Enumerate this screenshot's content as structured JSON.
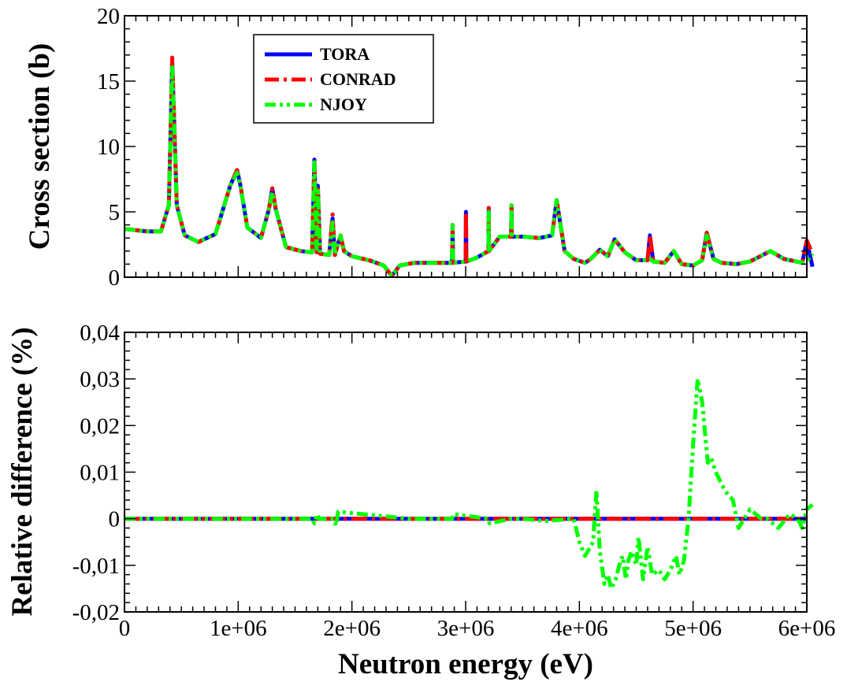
{
  "chart_data": [
    {
      "type": "line",
      "xlim": [
        0,
        6000000
      ],
      "ylim": [
        0,
        20
      ],
      "ylabel": "Cross section (b)",
      "x_ticks": [
        0,
        1000000,
        2000000,
        3000000,
        4000000,
        5000000,
        6000000
      ],
      "y_ticks": [
        0,
        5,
        10,
        15,
        20
      ],
      "y_tick_labels": [
        "0",
        "5",
        "10",
        "15",
        "20"
      ],
      "legend": {
        "position": "top-left",
        "entries": [
          "TORA",
          "CONRAD",
          "NJOY"
        ]
      },
      "series": [
        {
          "name": "TORA",
          "color": "#0000ff",
          "style": "solid",
          "x": [
            0,
            200000,
            320000,
            390000,
            420000,
            460000,
            530000,
            650000,
            800000,
            930000,
            990000,
            1020000,
            1080000,
            1200000,
            1270000,
            1300000,
            1330000,
            1420000,
            1550000,
            1650000,
            1670000,
            1690000,
            1700000,
            1720000,
            1800000,
            1830000,
            1850000,
            1880000,
            1900000,
            1930000,
            2000000,
            2150000,
            2280000,
            2350000,
            2420000,
            2550000,
            2700000,
            2880000,
            2885000,
            2890000,
            3000000,
            3003000,
            3006000,
            3100000,
            3200000,
            3203000,
            3206000,
            3300000,
            3400000,
            3403000,
            3406000,
            3500000,
            3650000,
            3760000,
            3800000,
            3870000,
            3950000,
            4050000,
            4100000,
            4180000,
            4250000,
            4310000,
            4400000,
            4500000,
            4600000,
            4620000,
            4650000,
            4750000,
            4830000,
            4900000,
            5000000,
            5080000,
            5120000,
            5180000,
            5250000,
            5380000,
            5500000,
            5680000,
            5800000,
            5960000,
            6000000,
            6050000
          ],
          "y": [
            3.7,
            3.5,
            3.5,
            5.5,
            16.5,
            5.5,
            3.2,
            2.7,
            3.3,
            7.0,
            8.2,
            7.0,
            3.8,
            3.0,
            5.2,
            6.8,
            5.2,
            2.3,
            2.0,
            1.9,
            9.0,
            1.9,
            7.0,
            1.8,
            1.7,
            4.5,
            1.7,
            2.6,
            3.2,
            2.0,
            1.6,
            1.3,
            0.9,
            0.1,
            0.9,
            1.1,
            1.1,
            1.1,
            4.0,
            1.1,
            1.2,
            5.0,
            1.2,
            1.5,
            2.0,
            5.3,
            2.0,
            3.1,
            3.1,
            5.5,
            3.1,
            3.1,
            3.0,
            3.2,
            5.9,
            2.0,
            1.4,
            1.1,
            1.4,
            2.1,
            1.6,
            2.9,
            1.9,
            1.3,
            1.3,
            3.2,
            1.2,
            1.1,
            2.0,
            1.0,
            0.9,
            1.3,
            3.4,
            1.4,
            1.1,
            1.0,
            1.2,
            2.0,
            1.4,
            1.1,
            2.8,
            0.8
          ],
          "values": [
            3.7,
            3.5,
            3.5,
            5.5,
            16.5,
            5.5,
            3.2,
            2.7,
            3.3,
            7.0,
            8.2,
            7.0,
            3.8,
            3.0,
            5.2,
            6.8,
            5.2,
            2.3,
            2.0,
            1.9,
            9.0,
            1.9,
            7.0,
            1.8,
            1.7,
            4.5,
            1.7,
            2.6,
            3.2,
            2.0,
            1.6,
            1.3,
            0.9,
            0.1,
            0.9,
            1.1,
            1.1,
            1.1,
            4.0,
            1.1,
            1.2,
            5.0,
            1.2,
            1.5,
            2.0,
            5.3,
            2.0,
            3.1,
            3.1,
            5.5,
            3.1,
            3.1,
            3.0,
            3.2,
            5.9,
            2.0,
            1.4,
            1.1,
            1.4,
            2.1,
            1.6,
            2.9,
            1.9,
            1.3,
            1.3,
            3.2,
            1.2,
            1.1,
            2.0,
            1.0,
            0.9,
            1.3,
            3.4,
            1.4,
            1.1,
            1.0,
            1.2,
            2.0,
            1.4,
            1.1,
            2.8,
            0.8
          ]
        },
        {
          "name": "CONRAD",
          "color": "#ff0000",
          "style": "dash-dot",
          "x": [
            0,
            200000,
            320000,
            390000,
            420000,
            460000,
            530000,
            650000,
            800000,
            930000,
            990000,
            1020000,
            1080000,
            1200000,
            1270000,
            1300000,
            1330000,
            1420000,
            1550000,
            1650000,
            1670000,
            1690000,
            1700000,
            1720000,
            1800000,
            1830000,
            1850000,
            1880000,
            1900000,
            1930000,
            2000000,
            2150000,
            2280000,
            2350000,
            2420000,
            2550000,
            2700000,
            2880000,
            2885000,
            2890000,
            3000000,
            3003000,
            3006000,
            3100000,
            3200000,
            3203000,
            3206000,
            3300000,
            3400000,
            3403000,
            3406000,
            3500000,
            3650000,
            3760000,
            3800000,
            3870000,
            3950000,
            4050000,
            4100000,
            4180000,
            4250000,
            4310000,
            4400000,
            4500000,
            4600000,
            4620000,
            4650000,
            4750000,
            4830000,
            4900000,
            5000000,
            5080000,
            5120000,
            5180000,
            5250000,
            5380000,
            5500000,
            5680000,
            5800000,
            5960000,
            6000000,
            6050000
          ],
          "y": [
            3.7,
            3.5,
            3.5,
            5.5,
            16.8,
            5.5,
            3.2,
            2.7,
            3.3,
            7.0,
            8.2,
            7.0,
            3.8,
            3.0,
            5.2,
            6.8,
            5.2,
            2.3,
            2.0,
            1.9,
            8.8,
            1.9,
            7.0,
            1.8,
            1.7,
            4.8,
            1.7,
            2.6,
            3.2,
            2.0,
            1.6,
            1.3,
            0.9,
            0.1,
            0.9,
            1.1,
            1.1,
            1.1,
            4.0,
            1.1,
            1.2,
            5.0,
            1.2,
            1.5,
            2.0,
            5.3,
            2.0,
            3.1,
            3.1,
            5.5,
            3.1,
            3.1,
            3.0,
            3.2,
            5.9,
            2.0,
            1.4,
            1.1,
            1.4,
            2.1,
            1.6,
            2.9,
            1.9,
            1.3,
            1.3,
            3.2,
            1.2,
            1.1,
            2.0,
            1.0,
            0.9,
            1.3,
            3.4,
            1.4,
            1.1,
            1.0,
            1.2,
            2.0,
            1.4,
            1.1,
            2.8,
            1.8
          ],
          "values": [
            3.7,
            3.5,
            3.5,
            5.5,
            16.8,
            5.5,
            3.2,
            2.7,
            3.3,
            7.0,
            8.2,
            7.0,
            3.8,
            3.0,
            5.2,
            6.8,
            5.2,
            2.3,
            2.0,
            1.9,
            8.8,
            1.9,
            7.0,
            1.8,
            1.7,
            4.8,
            1.7,
            2.6,
            3.2,
            2.0,
            1.6,
            1.3,
            0.9,
            0.1,
            0.9,
            1.1,
            1.1,
            1.1,
            4.0,
            1.1,
            1.2,
            5.0,
            1.2,
            1.5,
            2.0,
            5.3,
            2.0,
            3.1,
            3.1,
            5.5,
            3.1,
            3.1,
            3.0,
            3.2,
            5.9,
            2.0,
            1.4,
            1.1,
            1.4,
            2.1,
            1.6,
            2.9,
            1.9,
            1.3,
            1.3,
            3.2,
            1.2,
            1.1,
            2.0,
            1.0,
            0.9,
            1.3,
            3.4,
            1.4,
            1.1,
            1.0,
            1.2,
            2.0,
            1.4,
            1.1,
            2.8,
            1.8
          ]
        },
        {
          "name": "NJOY",
          "color": "#00ff00",
          "style": "dash-dot-dot",
          "x": [
            0,
            200000,
            320000,
            390000,
            420000,
            460000,
            530000,
            650000,
            800000,
            930000,
            990000,
            1020000,
            1080000,
            1200000,
            1270000,
            1300000,
            1330000,
            1420000,
            1550000,
            1650000,
            1670000,
            1690000,
            1700000,
            1720000,
            1800000,
            1830000,
            1850000,
            1880000,
            1900000,
            1930000,
            2000000,
            2150000,
            2280000,
            2350000,
            2420000,
            2550000,
            2700000,
            2880000,
            2885000,
            2890000,
            3000000,
            3003000,
            3006000,
            3100000,
            3200000,
            3203000,
            3206000,
            3300000,
            3400000,
            3403000,
            3406000,
            3500000,
            3650000,
            3760000,
            3800000,
            3870000,
            3950000,
            4050000,
            4100000,
            4180000,
            4250000,
            4310000,
            4400000,
            4500000,
            4600000,
            4620000,
            4650000,
            4750000,
            4830000,
            4900000,
            5000000,
            5080000,
            5120000,
            5180000,
            5250000,
            5380000,
            5500000,
            5680000,
            5800000,
            5960000,
            6000000,
            6050000
          ],
          "y": [
            3.7,
            3.5,
            3.5,
            5.5,
            16.2,
            5.5,
            3.2,
            2.7,
            3.3,
            7.0,
            8.0,
            7.0,
            3.8,
            3.0,
            5.2,
            6.5,
            5.2,
            2.3,
            2.0,
            1.9,
            8.8,
            1.9,
            6.8,
            1.8,
            1.7,
            4.2,
            1.7,
            2.6,
            3.2,
            2.0,
            1.6,
            1.3,
            0.9,
            0.1,
            0.9,
            1.1,
            1.1,
            1.1,
            4.0,
            1.1,
            1.2,
            1.2,
            1.2,
            1.5,
            2.0,
            5.0,
            2.0,
            3.1,
            3.1,
            5.5,
            3.1,
            3.1,
            3.0,
            3.2,
            5.9,
            2.0,
            1.4,
            1.1,
            1.4,
            2.1,
            1.6,
            2.9,
            1.9,
            1.3,
            1.3,
            1.4,
            1.2,
            1.1,
            2.0,
            1.0,
            0.9,
            1.3,
            3.2,
            1.4,
            1.1,
            1.0,
            1.2,
            2.0,
            1.4,
            1.1,
            1.2,
            1.8
          ],
          "values": [
            3.7,
            3.5,
            3.5,
            5.5,
            16.2,
            5.5,
            3.2,
            2.7,
            3.3,
            7.0,
            8.0,
            7.0,
            3.8,
            3.0,
            5.2,
            6.5,
            5.2,
            2.3,
            2.0,
            1.9,
            8.8,
            1.9,
            6.8,
            1.8,
            1.7,
            4.2,
            1.7,
            2.6,
            3.2,
            2.0,
            1.6,
            1.3,
            0.9,
            0.1,
            0.9,
            1.1,
            1.1,
            1.1,
            4.0,
            1.1,
            1.2,
            1.2,
            1.2,
            1.5,
            2.0,
            5.0,
            2.0,
            3.1,
            3.1,
            5.5,
            3.1,
            3.1,
            3.0,
            3.2,
            5.9,
            2.0,
            1.4,
            1.1,
            1.4,
            2.1,
            1.6,
            2.9,
            1.9,
            1.3,
            1.3,
            1.4,
            1.2,
            1.1,
            2.0,
            1.0,
            0.9,
            1.3,
            3.2,
            1.4,
            1.1,
            1.0,
            1.2,
            2.0,
            1.4,
            1.1,
            1.2,
            1.8
          ]
        }
      ]
    },
    {
      "type": "line",
      "xlim": [
        0,
        6000000
      ],
      "ylim": [
        -0.02,
        0.04
      ],
      "ylabel": "Relative difference (%)",
      "xlabel": "Neutron energy (eV)",
      "x_ticks": [
        0,
        1000000,
        2000000,
        3000000,
        4000000,
        5000000,
        6000000
      ],
      "x_tick_labels": [
        "0",
        "1e+06",
        "2e+06",
        "3e+06",
        "4e+06",
        "5e+06",
        "6e+06"
      ],
      "y_ticks": [
        -0.02,
        -0.01,
        0,
        0.01,
        0.02,
        0.03,
        0.04
      ],
      "y_tick_labels": [
        "-0,02",
        "-0,01",
        "0",
        "0,01",
        "0,02",
        "0,03",
        "0,04"
      ],
      "series": [
        {
          "name": "TORA",
          "color": "#0000ff",
          "style": "solid",
          "x": [
            0,
            6000000
          ],
          "y": [
            0,
            0
          ],
          "values": [
            0,
            0
          ]
        },
        {
          "name": "CONRAD",
          "color": "#ff0000",
          "style": "dash-dot",
          "x": [
            0,
            6000000
          ],
          "y": [
            0,
            0
          ],
          "values": [
            0,
            0
          ]
        },
        {
          "name": "NJOY",
          "color": "#00ff00",
          "style": "dash-dot-dot",
          "x": [
            0,
            1650000,
            1670000,
            1690000,
            1710000,
            1840000,
            1860000,
            1880000,
            2500000,
            2880000,
            2890000,
            3200000,
            3210000,
            3400000,
            3500000,
            3700000,
            3950000,
            4000000,
            4050000,
            4120000,
            4150000,
            4180000,
            4220000,
            4250000,
            4280000,
            4320000,
            4350000,
            4380000,
            4410000,
            4430000,
            4460000,
            4500000,
            4520000,
            4560000,
            4600000,
            4640000,
            4700000,
            4750000,
            4800000,
            4850000,
            4880000,
            4920000,
            4960000,
            5000000,
            5040000,
            5080000,
            5130000,
            5160000,
            5200000,
            5280000,
            5350000,
            5400000,
            5500000,
            5600000,
            5650000,
            5750000,
            5850000,
            5920000,
            5960000,
            6000000,
            6050000
          ],
          "y": [
            0,
            0,
            -0.001,
            0.001,
            0,
            0,
            -0.0015,
            0.0015,
            0,
            0,
            0.001,
            0,
            -0.001,
            0,
            0,
            -0.0005,
            0,
            -0.005,
            -0.008,
            -0.005,
            0.006,
            -0.007,
            -0.014,
            -0.012,
            -0.015,
            -0.013,
            -0.01,
            -0.008,
            -0.013,
            -0.009,
            -0.007,
            -0.01,
            -0.004,
            -0.013,
            -0.006,
            -0.012,
            -0.011,
            -0.013,
            -0.011,
            -0.008,
            -0.012,
            -0.009,
            0,
            0.016,
            0.03,
            0.025,
            0.012,
            0.013,
            0.01,
            0.006,
            0.004,
            -0.002,
            0.002,
            0,
            0,
            -0.002,
            0.001,
            0,
            -0.002,
            0.002,
            0.003
          ],
          "values": [
            0,
            0,
            -0.001,
            0.001,
            0,
            0,
            -0.0015,
            0.0015,
            0,
            0,
            0.001,
            0,
            -0.001,
            0,
            0,
            -0.0005,
            0,
            -0.005,
            -0.008,
            -0.005,
            0.006,
            -0.007,
            -0.014,
            -0.012,
            -0.015,
            -0.013,
            -0.01,
            -0.008,
            -0.013,
            -0.009,
            -0.007,
            -0.01,
            -0.004,
            -0.013,
            -0.006,
            -0.012,
            -0.011,
            -0.013,
            -0.011,
            -0.008,
            -0.012,
            -0.009,
            0,
            0.016,
            0.03,
            0.025,
            0.012,
            0.013,
            0.01,
            0.006,
            0.004,
            -0.002,
            0.002,
            0,
            0,
            -0.002,
            0.001,
            0,
            -0.002,
            0.002,
            0.003
          ]
        }
      ]
    }
  ]
}
